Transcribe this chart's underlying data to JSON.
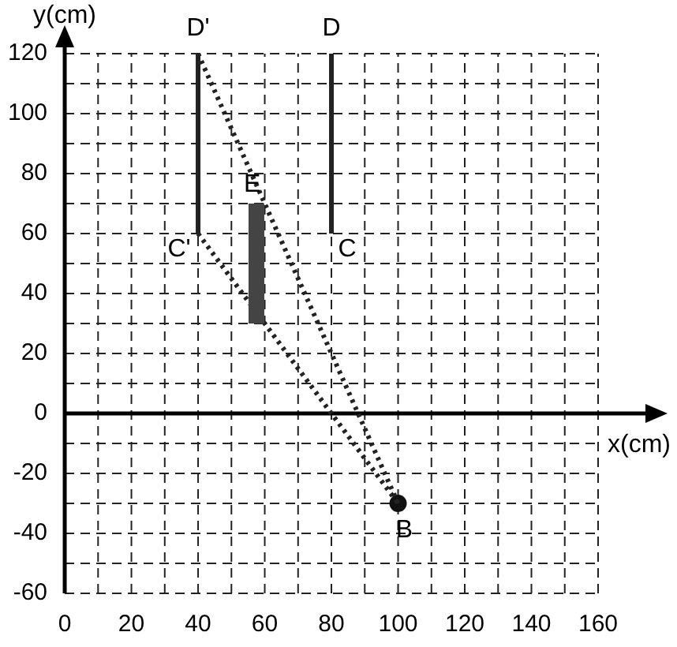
{
  "chart_data": {
    "type": "line",
    "xlabel": "x(cm)",
    "ylabel": "y(cm)",
    "xlim": [
      0,
      160
    ],
    "ylim": [
      -60,
      120
    ],
    "xticks": [
      0,
      {
        "value": 10,
        "label": null
      },
      20,
      {
        "value": 30,
        "label": null
      },
      40,
      {
        "value": 50,
        "label": null
      },
      60,
      {
        "value": 70,
        "label": null
      },
      80,
      {
        "value": 90,
        "label": null
      },
      100,
      {
        "value": 110,
        "label": null
      },
      120,
      {
        "value": 130,
        "label": null
      },
      140,
      {
        "value": 150,
        "label": null
      },
      160
    ],
    "yticks": [
      -60,
      {
        "value": -50,
        "label": null
      },
      -40,
      {
        "value": -30,
        "label": null
      },
      -20,
      {
        "value": -10,
        "label": null
      },
      0,
      {
        "value": 10,
        "label": null
      },
      20,
      {
        "value": 30,
        "label": null
      },
      40,
      {
        "value": 50,
        "label": null
      },
      60,
      {
        "value": 70,
        "label": null
      },
      80,
      {
        "value": 90,
        "label": null
      },
      100,
      {
        "value": 110,
        "label": null
      },
      120
    ],
    "grid": true,
    "legend": false,
    "marker": "none",
    "series": [
      {
        "x": [
          40,
          40
        ],
        "values": [
          60,
          120
        ],
        "color": "#222222",
        "line_style": "solid"
      },
      {
        "x": [
          80,
          80
        ],
        "values": [
          60,
          120
        ],
        "color": "#222222",
        "line_style": "solid"
      },
      {
        "x": [
          57.5,
          57.5
        ],
        "values": [
          30,
          70
        ],
        "color": "#444444",
        "line_style": "solid"
      },
      {
        "x": [
          40,
          100
        ],
        "values": [
          120,
          -30
        ],
        "color": "#222222",
        "line_style": "dotted"
      },
      {
        "x": [
          40,
          100
        ],
        "values": [
          60,
          -30
        ],
        "color": "#222222",
        "line_style": "dotted"
      },
      {
        "type": "scatter",
        "x": [
          100
        ],
        "values": [
          -30
        ],
        "color": "#111111",
        "marker": "circle"
      }
    ],
    "annotations": [
      {
        "text": "D'",
        "x": 40,
        "y": 120
      },
      {
        "text": "D",
        "x": 80,
        "y": 120
      },
      {
        "text": "C'",
        "x": 40,
        "y": 60
      },
      {
        "text": "C",
        "x": 80,
        "y": 60
      },
      {
        "text": "E",
        "x": 60,
        "y": 70
      },
      {
        "text": "B",
        "x": 100,
        "y": -30
      }
    ]
  }
}
